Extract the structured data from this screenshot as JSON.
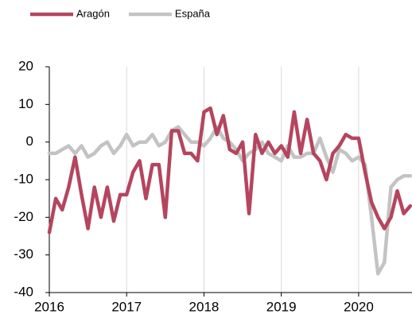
{
  "chart_data": {
    "type": "line",
    "x": [
      2016,
      2016.083,
      2016.167,
      2016.25,
      2016.333,
      2016.417,
      2016.5,
      2016.583,
      2016.667,
      2016.75,
      2016.833,
      2016.917,
      2017,
      2017.083,
      2017.167,
      2017.25,
      2017.333,
      2017.417,
      2017.5,
      2017.583,
      2017.667,
      2017.75,
      2017.833,
      2017.917,
      2018,
      2018.083,
      2018.167,
      2018.25,
      2018.333,
      2018.417,
      2018.5,
      2018.583,
      2018.667,
      2018.75,
      2018.833,
      2018.917,
      2019,
      2019.083,
      2019.167,
      2019.25,
      2019.333,
      2019.417,
      2019.5,
      2019.583,
      2019.667,
      2019.75,
      2019.833,
      2019.917,
      2020,
      2020.083,
      2020.167,
      2020.25,
      2020.333,
      2020.417,
      2020.5,
      2020.583,
      2020.667
    ],
    "series": [
      {
        "name": "Aragón",
        "color": "#b5455f",
        "values": [
          -24,
          -15,
          -18,
          -12,
          -4,
          -14,
          -23,
          -12,
          -20,
          -12,
          -21,
          -14,
          -14,
          -8,
          -5,
          -15,
          -6,
          -6,
          -20,
          3,
          3,
          -3,
          -3,
          -5,
          8,
          9,
          2,
          7,
          -2,
          -3,
          0,
          -19,
          2,
          -3,
          0,
          -3,
          -1,
          -4,
          8,
          -3,
          6,
          -3,
          -5,
          -10,
          -3,
          -1,
          2,
          1,
          1,
          -8,
          -16,
          -20,
          -23,
          -20,
          -13,
          -19,
          -17
        ]
      },
      {
        "name": "España",
        "color": "#c3c3c3",
        "values": [
          -3,
          -3,
          -2,
          -1,
          -3,
          -1,
          -4,
          -3,
          -1,
          0,
          -3,
          -1,
          2,
          -1,
          0,
          0,
          2,
          -1,
          0,
          3,
          4,
          2,
          0,
          0,
          -1,
          1,
          4,
          1,
          0,
          -2,
          -5,
          -3,
          -2,
          0,
          -3,
          -4,
          -5,
          -1,
          -4,
          -4,
          -3,
          -3,
          1,
          -4,
          -8,
          -2,
          -3,
          -5,
          -4,
          -6,
          -20,
          -35,
          -32,
          -12,
          -10,
          -9,
          -9
        ]
      }
    ],
    "xlim": [
      2016,
      2020.69
    ],
    "xticks": [
      2016,
      2017,
      2018,
      2019,
      2020
    ],
    "ylim": [
      -40,
      20
    ],
    "yticks": [
      -40,
      -30,
      -20,
      -10,
      0,
      10,
      20
    ],
    "grid": "x",
    "legend": "top-left"
  }
}
